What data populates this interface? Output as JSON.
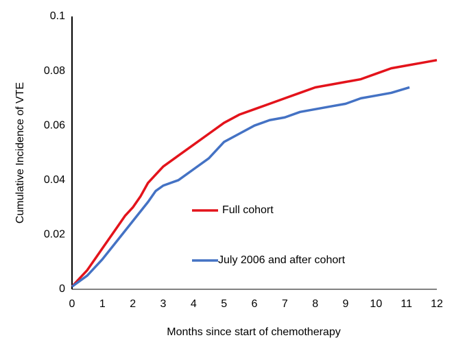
{
  "chart_data": {
    "type": "line",
    "x_label": "Months since start of chemotherapy",
    "y_label": "Cumulative Incidence of VTE",
    "xlim": [
      0,
      12
    ],
    "xticks": [
      0,
      1,
      2,
      3,
      4,
      5,
      6,
      7,
      8,
      9,
      10,
      11,
      12
    ],
    "ylim": [
      0,
      0.1
    ],
    "yticks": [
      0,
      0.02,
      0.04,
      0.06,
      0.08,
      0.1
    ],
    "grid": false,
    "series": [
      {
        "name": "Full cohort",
        "color": "#e3131b",
        "x": [
          0,
          0.25,
          0.5,
          0.75,
          1,
          1.25,
          1.5,
          1.75,
          2,
          2.25,
          2.5,
          2.75,
          3,
          3.5,
          4,
          4.5,
          5,
          5.5,
          6,
          6.5,
          7,
          7.5,
          8,
          8.5,
          9,
          9.5,
          10,
          10.5,
          11,
          11.5,
          12
        ],
        "values": [
          0.001,
          0.004,
          0.007,
          0.011,
          0.015,
          0.019,
          0.023,
          0.027,
          0.03,
          0.034,
          0.039,
          0.042,
          0.045,
          0.049,
          0.053,
          0.057,
          0.061,
          0.064,
          0.066,
          0.068,
          0.07,
          0.072,
          0.074,
          0.075,
          0.076,
          0.077,
          0.079,
          0.081,
          0.082,
          0.083,
          0.084
        ]
      },
      {
        "name": "July 2006 and after cohort",
        "color": "#4472c4",
        "x": [
          0,
          0.5,
          1,
          1.5,
          2,
          2.5,
          2.75,
          3,
          3.5,
          4,
          4.5,
          5,
          5.5,
          6,
          6.5,
          7,
          7.5,
          8,
          8.5,
          9,
          9.5,
          10,
          10.5,
          11.1
        ],
        "values": [
          0.001,
          0.005,
          0.011,
          0.018,
          0.025,
          0.032,
          0.036,
          0.038,
          0.04,
          0.044,
          0.048,
          0.054,
          0.057,
          0.06,
          0.062,
          0.063,
          0.065,
          0.066,
          0.067,
          0.068,
          0.07,
          0.071,
          0.072,
          0.074
        ]
      }
    ]
  }
}
